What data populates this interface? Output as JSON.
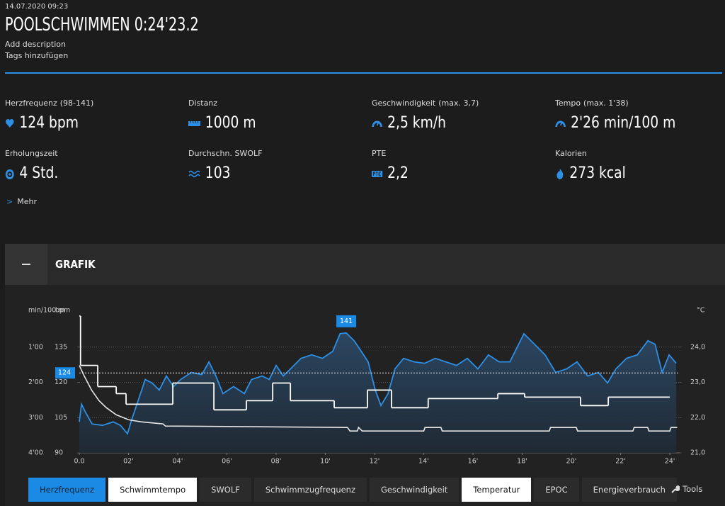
{
  "header": {
    "date": "14.07.2020 09:23",
    "title": "POOLSCHWIMMEN 0:24'23.2",
    "description": "Add description",
    "tags": "Tags hinzufügen"
  },
  "stats": [
    {
      "label": "Herzfrequenz",
      "range": "(98-141)",
      "value": "124 bpm"
    },
    {
      "label": "Distanz",
      "value": "1000 m"
    },
    {
      "label": "Geschwindigkeit",
      "range": "(max.  3,7)",
      "value": "2,5 km/h"
    },
    {
      "label": "Tempo",
      "range": "(max.  1'38)",
      "value": "2'26 min/100 m"
    },
    {
      "label": "Erholungszeit",
      "value": "4 Std."
    },
    {
      "label": "Durchschn. SWOLF",
      "value": "103"
    },
    {
      "label": "PTE",
      "value": "2,2"
    },
    {
      "label": "Kalorien",
      "value": "273 kcal"
    }
  ],
  "more": "Mehr",
  "section": {
    "title": "GRAFIK"
  },
  "chart_data": {
    "type": "line",
    "y_label": "bpm",
    "y3_label": "min/100 m",
    "y2_label": "°C",
    "xlim": [
      0,
      24.39
    ],
    "xticks": [
      {
        "value": 0,
        "label": "0.0"
      },
      {
        "value": 2,
        "label": "02'"
      },
      {
        "value": 4,
        "label": "04'"
      },
      {
        "value": 6,
        "label": "06'"
      },
      {
        "value": 8,
        "label": "08'"
      },
      {
        "value": 10,
        "label": "10'"
      },
      {
        "value": 12,
        "label": "12'"
      },
      {
        "value": 14,
        "label": "14'"
      },
      {
        "value": 16,
        "label": "16'"
      },
      {
        "value": 18,
        "label": "18'"
      },
      {
        "value": 20,
        "label": "20'"
      },
      {
        "value": 22,
        "label": "22'"
      },
      {
        "value": 24,
        "label": "24'"
      }
    ],
    "ylim": [
      90,
      150
    ],
    "yticks": [
      135,
      120,
      105,
      90
    ],
    "y3lim": [
      240,
      0
    ],
    "y3ticks": [
      {
        "value": 60,
        "label": "1'00"
      },
      {
        "value": 120,
        "label": "2'00"
      },
      {
        "value": 180,
        "label": "3'00"
      },
      {
        "value": 240,
        "label": "4'00"
      }
    ],
    "y2lim": [
      21,
      25
    ],
    "y2ticks": [
      {
        "value": 24,
        "label": "24,0"
      },
      {
        "value": 23,
        "label": "23,0"
      },
      {
        "value": 22,
        "label": "22,0"
      },
      {
        "value": 21,
        "label": "21,0"
      }
    ],
    "grid": true,
    "average": 124,
    "max": 141,
    "series": [
      {
        "name": "Herzfrequenz",
        "color": "#2d8fe6",
        "axis": "y",
        "x": [
          0,
          0.09,
          0.23,
          0.52,
          0.95,
          1.38,
          1.67,
          1.96,
          2.1,
          2.39,
          2.68,
          2.96,
          3.25,
          3.54,
          3.83,
          4.12,
          4.55,
          4.98,
          5.27,
          5.55,
          5.84,
          6.27,
          6.71,
          7.0,
          7.43,
          7.72,
          8.0,
          8.29,
          8.58,
          9.01,
          9.45,
          9.88,
          10.3,
          10.6,
          10.85,
          11.17,
          11.46,
          11.74,
          12.03,
          12.26,
          12.55,
          12.83,
          13.18,
          13.61,
          14.04,
          14.47,
          14.9,
          15.33,
          15.77,
          16.2,
          16.63,
          17.06,
          17.5,
          18.07,
          18.5,
          18.93,
          19.36,
          19.8,
          20.23,
          20.66,
          21.1,
          21.47,
          21.81,
          22.24,
          22.68,
          23.11,
          23.4,
          23.69,
          23.97,
          24.26
        ],
        "values": [
          103.2,
          110.7,
          107.7,
          102.3,
          101.7,
          103.2,
          101.7,
          98.1,
          103.2,
          112.2,
          121.2,
          119.7,
          116.7,
          122.7,
          118.2,
          121.2,
          124.2,
          123.3,
          128.7,
          122.7,
          115.2,
          118.2,
          115.2,
          121.2,
          122.7,
          121.2,
          127.2,
          122.7,
          125.7,
          130.2,
          131.7,
          130.2,
          133.2,
          140.7,
          141,
          137.7,
          133.2,
          128.7,
          116.7,
          110.1,
          115.2,
          125.7,
          130.2,
          128.7,
          128.1,
          130.2,
          128.7,
          127.2,
          130.2,
          125.7,
          131.7,
          128.7,
          128.7,
          140.7,
          136.2,
          131.7,
          124.2,
          125.7,
          128.7,
          122.7,
          124.2,
          119.7,
          125.7,
          130.2,
          131.7,
          137.7,
          136.2,
          124.2,
          131.7,
          128.1
        ]
      },
      {
        "name": "Schwimmtempo",
        "color": "#ffffff",
        "axis": "y3",
        "x": [
          0,
          0.05,
          0.75,
          1.5,
          1.9,
          3.8,
          5.47,
          6.79,
          7.86,
          8.58,
          10.36,
          11.71,
          12.69,
          14.18,
          17.01,
          18.1,
          20.37,
          21.5
        ],
        "x_end": [
          0.05,
          0.75,
          1.5,
          1.9,
          3.8,
          5.47,
          6.79,
          7.86,
          8.58,
          10.36,
          11.71,
          12.69,
          14.18,
          17.01,
          18.1,
          20.37,
          21.5,
          24.0
        ],
        "values": [
          7.2,
          91.2,
          127.2,
          139.2,
          157.2,
          121.2,
          166.8,
          151.2,
          121.2,
          151.2,
          163.2,
          133.2,
          163.2,
          147.6,
          139.2,
          145.2,
          159.6,
          145.2
        ]
      },
      {
        "name": "Temperatur",
        "color": "#e6e6e6",
        "axis": "y2",
        "x": [
          0,
          0.2,
          0.5,
          0.8,
          1.1,
          1.5,
          2.0,
          2.5,
          3.4,
          3.5,
          10.9,
          11.0,
          11.3,
          11.35,
          11.5,
          14.0,
          14.05,
          14.7,
          14.75,
          19.1,
          19.15,
          20.2,
          20.25,
          22.5,
          22.55,
          23.1,
          23.15,
          24.0,
          24.05,
          24.3
        ],
        "values": [
          23.48,
          23.18,
          22.78,
          22.48,
          22.28,
          22.08,
          21.94,
          21.88,
          21.82,
          21.76,
          21.72,
          21.62,
          21.62,
          21.72,
          21.62,
          21.62,
          21.72,
          21.72,
          21.62,
          21.62,
          21.72,
          21.72,
          21.62,
          21.62,
          21.72,
          21.72,
          21.62,
          21.62,
          21.72,
          21.72
        ]
      }
    ]
  },
  "tabs": [
    {
      "label": "Herzfrequenz",
      "state": "active"
    },
    {
      "label": "Schwimmtempo",
      "state": "selected"
    },
    {
      "label": "SWOLF",
      "state": "normal"
    },
    {
      "label": "Schwimmzugfrequenz",
      "state": "normal"
    },
    {
      "label": "Geschwindigkeit",
      "state": "normal"
    },
    {
      "label": "Temperatur",
      "state": "selected"
    },
    {
      "label": "EPOC",
      "state": "normal"
    },
    {
      "label": "Energieverbrauch",
      "state": "normal"
    }
  ],
  "tools": "Tools"
}
